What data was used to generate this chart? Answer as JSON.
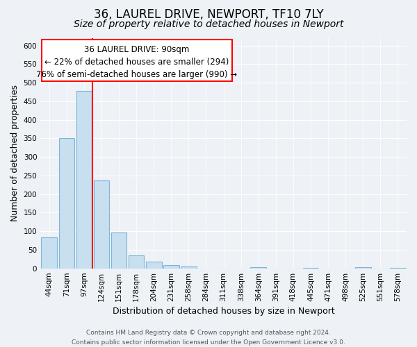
{
  "title": "36, LAUREL DRIVE, NEWPORT, TF10 7LY",
  "subtitle": "Size of property relative to detached houses in Newport",
  "xlabel": "Distribution of detached houses by size in Newport",
  "ylabel": "Number of detached properties",
  "bar_labels": [
    "44sqm",
    "71sqm",
    "97sqm",
    "124sqm",
    "151sqm",
    "178sqm",
    "204sqm",
    "231sqm",
    "258sqm",
    "284sqm",
    "311sqm",
    "338sqm",
    "364sqm",
    "391sqm",
    "418sqm",
    "445sqm",
    "471sqm",
    "498sqm",
    "525sqm",
    "551sqm",
    "578sqm"
  ],
  "bar_values": [
    83,
    350,
    478,
    236,
    97,
    35,
    18,
    8,
    5,
    0,
    0,
    0,
    3,
    0,
    0,
    1,
    0,
    0,
    3,
    0,
    2
  ],
  "bar_color": "#c8dff0",
  "bar_edge_color": "#7bb5d8",
  "annotation_line1": "36 LAUREL DRIVE: 90sqm",
  "annotation_line2": "← 22% of detached houses are smaller (294)",
  "annotation_line3": "76% of semi-detached houses are larger (990) →",
  "red_line_x": 2.5,
  "ylim": [
    0,
    620
  ],
  "yticks": [
    0,
    50,
    100,
    150,
    200,
    250,
    300,
    350,
    400,
    450,
    500,
    550,
    600
  ],
  "footer_line1": "Contains HM Land Registry data © Crown copyright and database right 2024.",
  "footer_line2": "Contains public sector information licensed under the Open Government Licence v3.0.",
  "title_fontsize": 12,
  "subtitle_fontsize": 10,
  "xlabel_fontsize": 9,
  "ylabel_fontsize": 9,
  "tick_fontsize": 7.5,
  "annotation_fontsize": 8.5,
  "footer_fontsize": 6.5,
  "background_color": "#eef2f7"
}
